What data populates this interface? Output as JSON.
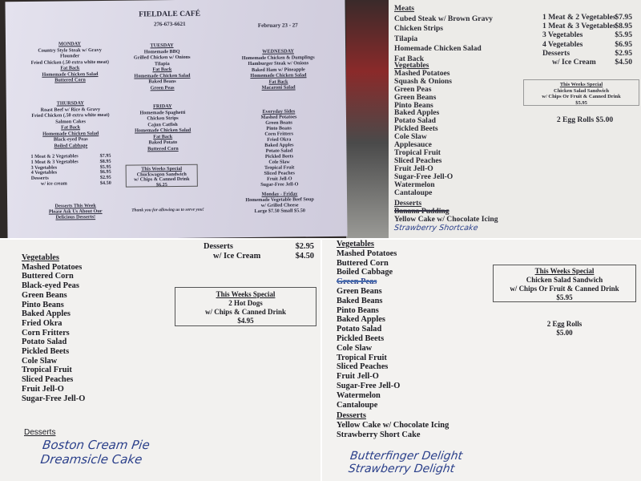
{
  "photo1": {
    "title": "FIELDALE CAFÉ",
    "phone": "276-673-6621",
    "dates": "February 23 - 27",
    "monday": {
      "heading": "MONDAY",
      "items": [
        "Country Style Steak w/ Gravy",
        "Flounder",
        "Fried Chicken (.50 extra white meat)",
        "Fat Back",
        "Homemade Chicken Salad",
        "Buttered Corn"
      ]
    },
    "tuesday": {
      "heading": "TUESDAY",
      "items": [
        "Homemade BBQ",
        "Grilled Chicken w/ Onions",
        "Tilapia",
        "Fat Back",
        "Homemade Chicken Salad",
        "Baked Beans",
        "Green Peas"
      ]
    },
    "wednesday": {
      "heading": "WEDNESDAY",
      "items": [
        "Homemade Chicken & Dumplings",
        "Hamburger Steak w/ Onions",
        "Baked Ham w/ Pineapple",
        "Homemade Chicken Salad",
        "Fat Back",
        "Macaroni Salad"
      ]
    },
    "thursday": {
      "heading": "THURSDAY",
      "items": [
        "Roast Beef w/ Rice & Gravy",
        "Fried Chicken (.50 extra white meat)",
        "Salmon Cakes",
        "Fat Back",
        "Homemade Chicken Salad",
        "Black-eyed Peas",
        "Boiled Cabbage"
      ]
    },
    "friday": {
      "heading": "FRIDAY",
      "items": [
        "Homemade Spaghetti",
        "Chicken Strips",
        "Cajun Catfish",
        "Homemade Chicken Salad",
        "Fat Back",
        "Baked Potato",
        "Buttered Corn"
      ]
    },
    "sides": {
      "heading": "Everyday Sides",
      "items": [
        "Mashed Potatoes",
        "Green Beans",
        "Pinto Beans",
        "Corn Fritters",
        "Fried Okra",
        "Baked Apples",
        "Potato Salad",
        "Pickled Beets",
        "Cole Slaw",
        "Tropical Fruit",
        "Sliced Peaches",
        "Fruit Jell-O",
        "Sugar-Free Jell-O"
      ]
    },
    "prices": [
      [
        "1 Meat & 2 Vegetables",
        "$7.95"
      ],
      [
        "1 Meat & 3 Vegetables",
        "$8.95"
      ],
      [
        "3 Vegetables",
        "$5.95"
      ],
      [
        "4 Vegetables",
        "$6.95"
      ],
      [
        "Desserts",
        "$2.95"
      ],
      [
        "w/ ice cream",
        "$4.50"
      ]
    ],
    "special": [
      "This Weeks Special",
      "Chuckwagon Sandwich",
      "w/ Chips & Canned Drink",
      "$6.25"
    ],
    "desserts_note": [
      "Desserts This Week",
      "Please Ask Us About Our",
      "Delicious Desserts!"
    ],
    "thanks": "Thank you for allowing us to serve you!",
    "soup": [
      "Monday - Friday",
      "Homemade Vegetable Beef Soup",
      "w/ Grilled Cheese",
      "Large $7.50  Small  $5.50"
    ]
  },
  "photo2": {
    "meats_heading": "Meats",
    "meats": [
      "Cubed Steak w/ Brown Gravy",
      "Chicken Strips",
      "Tilapia",
      "Homemade Chicken Salad",
      "Fat Back"
    ],
    "veg_heading": "Vegetables",
    "vegetables": [
      "Mashed Potatoes",
      "Squash & Onions",
      "Green Peas",
      "Green Beans",
      "Pinto Beans",
      "Baked Apples",
      "Potato Salad",
      "Pickled Beets",
      "Cole Slaw",
      "Applesauce",
      "Tropical Fruit",
      "Sliced Peaches",
      "Fruit Jell-O",
      "Sugar-Free Jell-O",
      "Watermelon",
      "Cantaloupe"
    ],
    "desserts_heading": "Desserts",
    "desserts_crossed": "Banana Pudding",
    "desserts": [
      "Yellow Cake w/ Chocolate Icing"
    ],
    "handwritten": "Strawberry Shortcake",
    "prices": [
      [
        "1 Meat & 2 Vegetables",
        "$7.95"
      ],
      [
        "1 Meat & 3 Vegetables",
        "$8.95"
      ],
      [
        "3 Vegetables",
        "$5.95"
      ],
      [
        "4 Vegetables",
        "$6.95"
      ],
      [
        "Desserts",
        "$2.95"
      ],
      [
        "w/ Ice Cream",
        "$4.50"
      ]
    ],
    "special": [
      "This Weeks Special",
      "Chicken Salad Sandwich",
      "w/ Chips Or Fruit & Canned Drink",
      "$5.95"
    ],
    "egg_rolls": "2 Egg Rolls $5.00"
  },
  "photo3": {
    "desserts_price": [
      "Desserts",
      "$2.95"
    ],
    "icecream_price": [
      "w/ Ice Cream",
      "$4.50"
    ],
    "veg_heading": "Vegetables",
    "vegetables": [
      "Mashed Potatoes",
      "Buttered Corn",
      "Black-eyed Peas",
      "Green Beans",
      "Pinto Beans",
      "Baked Apples",
      "Fried Okra",
      "Corn Fritters",
      "Potato Salad",
      "Pickled Beets",
      "Cole Slaw",
      "Tropical Fruit",
      "Sliced Peaches",
      "Fruit Jell-O",
      "Sugar-Free Jell-O"
    ],
    "special": [
      "This Weeks Special",
      "2 Hot Dogs",
      "w/ Chips & Canned Drink",
      "$4.95"
    ],
    "desserts_heading": "Desserts",
    "handwritten": [
      "Boston Cream Pie",
      "Dreamsicle Cake"
    ]
  },
  "photo4": {
    "veg_heading": "Vegetables",
    "vegetables": [
      "Mashed Potatoes",
      "Buttered Corn",
      "Boiled Cabbage"
    ],
    "crossed": "Green Peas",
    "vegetables2": [
      "Green Beans",
      "Baked Beans",
      "Pinto Beans",
      "Baked Apples",
      "Potato Salad",
      "Pickled Beets",
      "Cole Slaw",
      "Tropical Fruit",
      "Sliced Peaches",
      "Fruit Jell-O",
      "Sugar-Free Jell-O",
      "Watermelon",
      "Cantaloupe"
    ],
    "special": [
      "This Weeks Special",
      "Chicken Salad Sandwich",
      "w/ Chips Or Fruit & Canned Drink",
      "$5.95"
    ],
    "egg_rolls": [
      "2 Egg Rolls",
      "$5.00"
    ],
    "desserts_heading": "Desserts",
    "desserts": [
      "Yellow Cake w/ Chocolate Icing",
      "Strawberry Short Cake"
    ],
    "handwritten": [
      "Butterfinger Delight",
      "Strawberry Delight"
    ]
  }
}
